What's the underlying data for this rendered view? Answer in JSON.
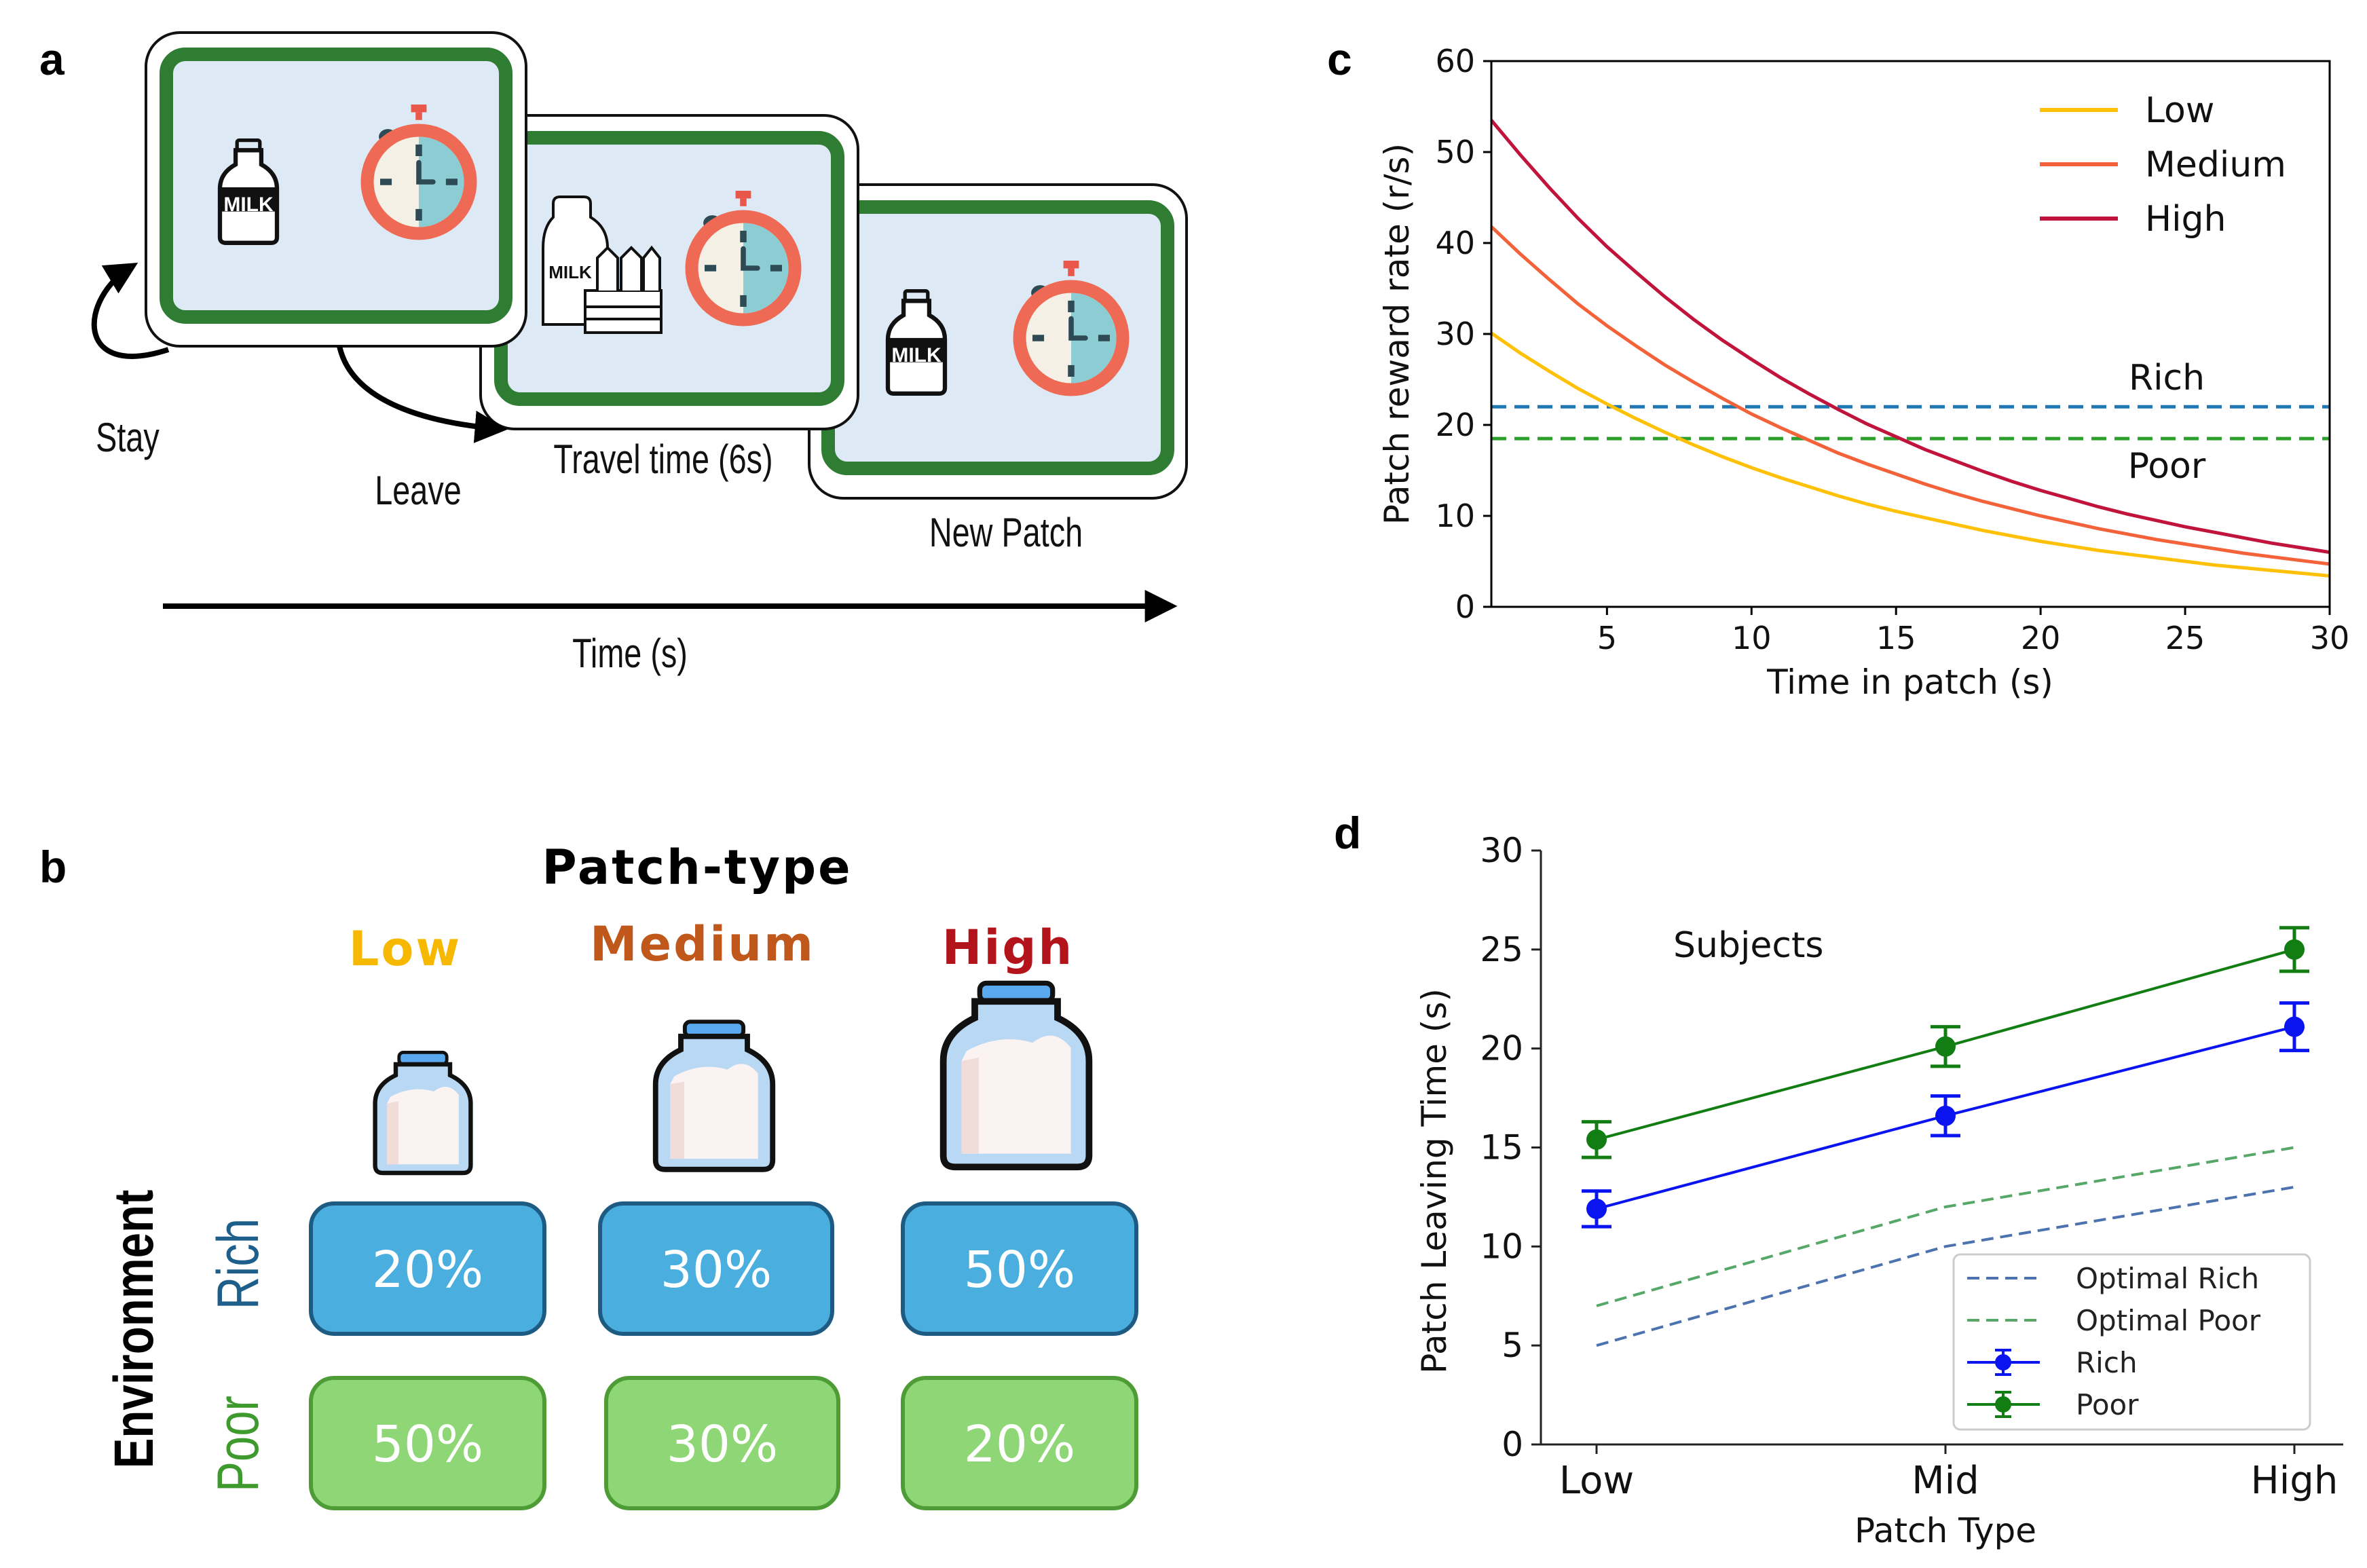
{
  "panel_a": {
    "letter": "a",
    "stay_label": "Stay",
    "leave_label": "Leave",
    "travel_label": "Travel time (6s)",
    "new_patch_label": "New Patch",
    "time_axis_label": "Time (s)",
    "bottle_text": "MILK",
    "colors": {
      "frame": "#2e7d32",
      "screen": "#dde9f5",
      "timer": "#ee6a55"
    },
    "icons": [
      "milk-bottle-icon",
      "stopwatch-icon",
      "milk-crate-icon"
    ]
  },
  "panel_b": {
    "letter": "b",
    "title": "Patch-type",
    "columns": [
      {
        "label": "Low",
        "color": "#f6b800"
      },
      {
        "label": "Medium",
        "color": "#c0571b"
      },
      {
        "label": "High",
        "color": "#b3141c"
      }
    ],
    "env_title": "Environment",
    "rows": [
      {
        "label": "Rich",
        "label_color": "#1d5e8a",
        "fill": "#4aaedf",
        "stroke": "#1e5b82",
        "values": [
          "20%",
          "30%",
          "50%"
        ]
      },
      {
        "label": "Poor",
        "label_color": "#3f9a2d",
        "fill": "#8ed676",
        "stroke": "#4d9c35",
        "values": [
          "50%",
          "30%",
          "20%"
        ]
      }
    ]
  },
  "chart_data": [
    {
      "panel": "c",
      "type": "line",
      "letter": "c",
      "xlabel": "Time in patch (s)",
      "ylabel": "Patch reward rate (r/s)",
      "xlim": [
        1,
        30
      ],
      "ylim": [
        0,
        60
      ],
      "xticks": [
        5,
        10,
        15,
        20,
        25,
        30
      ],
      "yticks": [
        0,
        10,
        20,
        30,
        40,
        50,
        60
      ],
      "legend_position": "top-right",
      "x": [
        1,
        2,
        3,
        4,
        5,
        6,
        7,
        8,
        9,
        10,
        11,
        12,
        13,
        14,
        15,
        16,
        17,
        18,
        19,
        20,
        21,
        22,
        23,
        24,
        25,
        26,
        27,
        28,
        29,
        30
      ],
      "series": [
        {
          "name": "Low",
          "color": "#ffc107",
          "values": [
            30.1,
            27.9,
            25.9,
            24.0,
            22.3,
            20.7,
            19.2,
            17.8,
            16.5,
            15.3,
            14.2,
            13.2,
            12.2,
            11.3,
            10.5,
            9.8,
            9.1,
            8.4,
            7.8,
            7.2,
            6.7,
            6.2,
            5.8,
            5.4,
            5.0,
            4.6,
            4.3,
            4.0,
            3.7,
            3.4
          ]
        },
        {
          "name": "Medium",
          "color": "#f4623a",
          "values": [
            41.8,
            38.8,
            36.0,
            33.3,
            30.9,
            28.7,
            26.6,
            24.7,
            22.9,
            21.2,
            19.7,
            18.3,
            16.9,
            15.7,
            14.6,
            13.5,
            12.5,
            11.6,
            10.8,
            10.0,
            9.3,
            8.6,
            8.0,
            7.4,
            6.9,
            6.4,
            5.9,
            5.5,
            5.1,
            4.7
          ]
        },
        {
          "name": "High",
          "color": "#c0143c",
          "values": [
            53.5,
            49.7,
            46.1,
            42.7,
            39.6,
            36.8,
            34.1,
            31.6,
            29.3,
            27.2,
            25.2,
            23.4,
            21.7,
            20.1,
            18.7,
            17.3,
            16.1,
            14.9,
            13.8,
            12.8,
            11.9,
            11.0,
            10.2,
            9.5,
            8.8,
            8.2,
            7.6,
            7.0,
            6.5,
            6.0
          ]
        }
      ],
      "hlines": [
        {
          "name": "Rich",
          "y": 22,
          "color": "#1f77b4",
          "dashed": true
        },
        {
          "name": "Poor",
          "y": 18.5,
          "color": "#2ca02c",
          "dashed": true
        }
      ]
    },
    {
      "panel": "d",
      "type": "line",
      "letter": "d",
      "annotation": "Subjects",
      "xlabel": "Patch Type",
      "ylabel": "Patch Leaving Time (s)",
      "categories": [
        "Low",
        "Mid",
        "High"
      ],
      "ylim": [
        0,
        30
      ],
      "yticks": [
        0,
        5,
        10,
        15,
        20,
        25,
        30
      ],
      "legend_position": "bottom-right",
      "series": [
        {
          "name": "Optimal Rich",
          "color": "#4c72b0",
          "dashed": true,
          "values": [
            5,
            10,
            13
          ]
        },
        {
          "name": "Optimal Poor",
          "color": "#55a868",
          "dashed": true,
          "values": [
            7,
            12,
            15
          ]
        },
        {
          "name": "Rich",
          "color": "#0a14f0",
          "values": [
            11.9,
            16.6,
            21.1
          ],
          "errors": [
            0.9,
            1.0,
            1.2
          ]
        },
        {
          "name": "Poor",
          "color": "#127d12",
          "values": [
            15.4,
            20.1,
            25.0
          ],
          "errors": [
            0.9,
            1.0,
            1.1
          ]
        }
      ]
    }
  ]
}
